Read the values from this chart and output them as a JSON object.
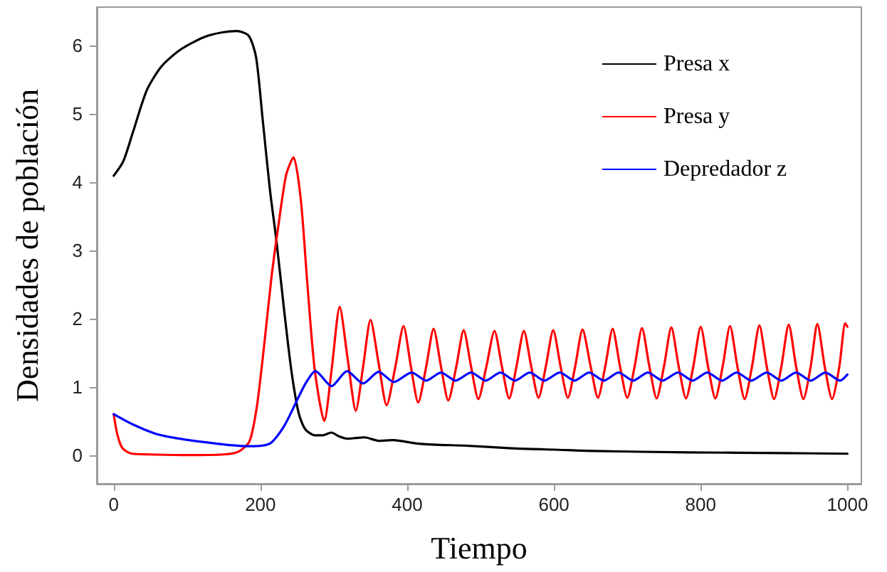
{
  "chart_data": {
    "type": "line",
    "xlabel": "Tiempo",
    "ylabel": "Densidades de población",
    "xlim": [
      -23,
      1019
    ],
    "xticks": [
      0,
      200,
      400,
      600,
      800,
      1000
    ],
    "ylim": [
      -0.42,
      6.56
    ],
    "yticks": [
      0,
      1,
      2,
      3,
      4,
      5,
      6
    ],
    "grid": false,
    "legend": "top right",
    "marker": "none",
    "line_style": "solid",
    "series": [
      {
        "name": "Presa x",
        "color": "#000000",
        "x": [
          0,
          13,
          26,
          45,
          65,
          90,
          123,
          148,
          168,
          184,
          194,
          203,
          213,
          222,
          232,
          242,
          252,
          261,
          274,
          284,
          297,
          306,
          319,
          330,
          342,
          361,
          381,
          413,
          445,
          477,
          542,
          600,
          654,
          783,
          912,
          1000
        ],
        "values": [
          4.09,
          4.3,
          4.72,
          5.34,
          5.69,
          5.93,
          6.12,
          6.19,
          6.21,
          6.14,
          5.83,
          4.92,
          3.88,
          3.12,
          2.15,
          1.25,
          0.62,
          0.38,
          0.29,
          0.29,
          0.33,
          0.28,
          0.24,
          0.25,
          0.26,
          0.21,
          0.22,
          0.17,
          0.15,
          0.14,
          0.1,
          0.08,
          0.06,
          0.04,
          0.03,
          0.02
        ]
      },
      {
        "name": "Presa y",
        "color": "#ff0000",
        "x": [
          0,
          5,
          12,
          25,
          50,
          100,
          150,
          170,
          185,
          195,
          205,
          215,
          225,
          235,
          245,
          255,
          264,
          274,
          287,
          297,
          308,
          319,
          330,
          340,
          350,
          361,
          372,
          384,
          395,
          405,
          415,
          426,
          436,
          446,
          456,
          467,
          477,
          487,
          497,
          508,
          519,
          529,
          539,
          549,
          559,
          569,
          579,
          589,
          599,
          609,
          619,
          629,
          639,
          650,
          660,
          670,
          680,
          690,
          700,
          710,
          720,
          730,
          740,
          750,
          760,
          770,
          780,
          790,
          800,
          810,
          820,
          830,
          840,
          850,
          860,
          870,
          880,
          890,
          900,
          910,
          920,
          930,
          940,
          950,
          959,
          969,
          979,
          989,
          997,
          1000
        ],
        "values": [
          0.6,
          0.3,
          0.1,
          0.02,
          0.01,
          0,
          0.01,
          0.05,
          0.2,
          0.7,
          1.6,
          2.6,
          3.4,
          4.1,
          4.36,
          3.74,
          2.5,
          1.25,
          0.5,
          1.25,
          2.17,
          1.4,
          0.65,
          1.3,
          1.98,
          1.35,
          0.73,
          1.3,
          1.89,
          1.3,
          0.77,
          1.3,
          1.85,
          1.3,
          0.8,
          1.3,
          1.83,
          1.3,
          0.82,
          1.3,
          1.82,
          1.3,
          0.83,
          1.3,
          1.82,
          1.3,
          0.84,
          1.3,
          1.83,
          1.3,
          0.84,
          1.3,
          1.84,
          1.3,
          0.84,
          1.3,
          1.85,
          1.3,
          0.84,
          1.3,
          1.86,
          1.3,
          0.83,
          1.3,
          1.87,
          1.3,
          0.83,
          1.3,
          1.88,
          1.3,
          0.83,
          1.3,
          1.89,
          1.3,
          0.82,
          1.3,
          1.9,
          1.3,
          0.82,
          1.3,
          1.91,
          1.3,
          0.82,
          1.3,
          1.92,
          1.3,
          0.82,
          1.3,
          1.93,
          1.88
        ]
      },
      {
        "name": "Depredador z",
        "color": "#0000ff",
        "x": [
          0,
          26,
          58,
          90,
          123,
          155,
          187,
          213,
          232,
          248,
          261,
          275,
          297,
          318,
          340,
          361,
          382,
          406,
          426,
          446,
          466,
          487,
          507,
          527,
          547,
          567,
          587,
          608,
          628,
          648,
          668,
          688,
          708,
          728,
          748,
          769,
          789,
          809,
          829,
          849,
          869,
          890,
          910,
          930,
          950,
          970,
          990,
          1000
        ],
        "values": [
          0.6,
          0.45,
          0.31,
          0.24,
          0.19,
          0.15,
          0.13,
          0.17,
          0.42,
          0.76,
          1.04,
          1.23,
          1.01,
          1.23,
          1.05,
          1.22,
          1.07,
          1.21,
          1.09,
          1.21,
          1.09,
          1.21,
          1.09,
          1.21,
          1.09,
          1.21,
          1.09,
          1.21,
          1.09,
          1.21,
          1.09,
          1.21,
          1.09,
          1.21,
          1.09,
          1.21,
          1.09,
          1.21,
          1.09,
          1.21,
          1.09,
          1.21,
          1.09,
          1.21,
          1.09,
          1.21,
          1.09,
          1.18
        ]
      }
    ]
  }
}
